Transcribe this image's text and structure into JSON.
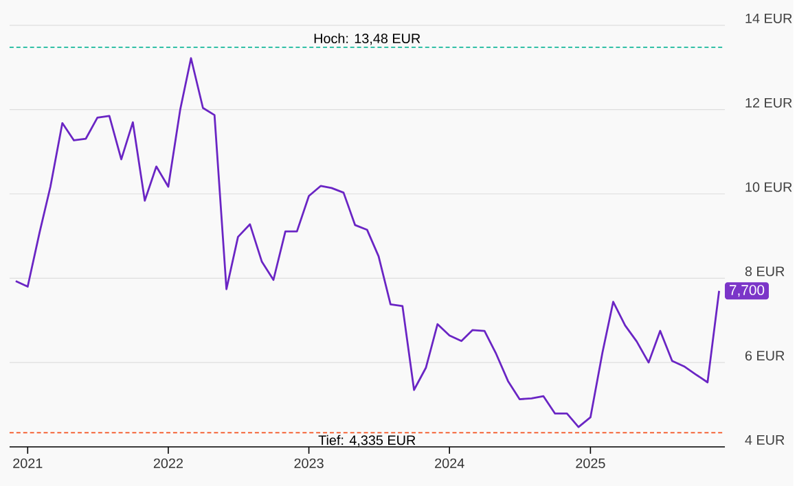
{
  "chart_data": {
    "type": "line",
    "x": [
      "2020-12",
      "2021-01",
      "2021-02",
      "2021-03",
      "2021-04",
      "2021-05",
      "2021-06",
      "2021-07",
      "2021-08",
      "2021-09",
      "2021-10",
      "2021-11",
      "2021-12",
      "2022-01",
      "2022-02",
      "2022-03",
      "2022-04",
      "2022-05",
      "2022-06",
      "2022-07",
      "2022-08",
      "2022-09",
      "2022-10",
      "2022-11",
      "2022-12",
      "2023-01",
      "2023-02",
      "2023-03",
      "2023-04",
      "2023-05",
      "2023-06",
      "2023-07",
      "2023-08",
      "2023-09",
      "2023-10",
      "2023-11",
      "2023-12",
      "2024-01",
      "2024-02",
      "2024-03",
      "2024-04",
      "2024-05",
      "2024-06",
      "2024-07",
      "2024-08",
      "2024-09",
      "2024-10",
      "2024-11",
      "2024-12",
      "2025-01",
      "2025-02",
      "2025-03",
      "2025-04",
      "2025-05",
      "2025-06",
      "2025-07",
      "2025-08",
      "2025-09",
      "2025-10",
      "2025-11",
      "2025-12"
    ],
    "series": [
      {
        "color": "#6a25c4",
        "values": [
          7.93,
          7.8,
          9.09,
          10.17,
          11.68,
          11.27,
          11.31,
          11.81,
          11.85,
          10.82,
          11.7,
          9.84,
          10.65,
          10.17,
          12.0,
          13.22,
          12.04,
          11.87,
          7.74,
          8.98,
          9.28,
          8.39,
          7.96,
          9.11,
          9.11,
          9.95,
          10.19,
          10.14,
          10.03,
          9.26,
          9.15,
          8.52,
          7.38,
          7.34,
          5.35,
          5.88,
          6.91,
          6.64,
          6.51,
          6.77,
          6.75,
          6.21,
          5.56,
          5.13,
          5.15,
          5.2,
          4.79,
          4.79,
          4.47,
          4.7,
          6.23,
          7.44,
          6.88,
          6.5,
          6.0,
          6.75,
          6.04,
          5.91,
          5.72,
          5.53,
          7.7
        ]
      }
    ],
    "xlim": [
      "2020-11-15",
      "2025-12-16"
    ],
    "xticks": [
      {
        "value": "2021-01",
        "label": "2021"
      },
      {
        "value": "2022-01",
        "label": "2022"
      },
      {
        "value": "2023-01",
        "label": "2023"
      },
      {
        "value": "2024-01",
        "label": "2024"
      },
      {
        "value": "2025-01",
        "label": "2025"
      }
    ],
    "ylim": [
      4,
      14.6
    ],
    "yticks": [
      {
        "value": 4,
        "label": "4 EUR"
      },
      {
        "value": 6,
        "label": "6 EUR"
      },
      {
        "value": 8,
        "label": "8 EUR"
      },
      {
        "value": 10,
        "label": "10 EUR"
      },
      {
        "value": 12,
        "label": "12 EUR"
      },
      {
        "value": 14,
        "label": "14 EUR"
      }
    ],
    "grid": "y",
    "ref_lines": [
      {
        "axis": "y",
        "value": 13.48,
        "label": "Hoch: 13,48 EUR",
        "color": "#14b89a",
        "line_style": "dashed"
      },
      {
        "axis": "y",
        "value": 4.335,
        "label": "Tief: 4,335 EUR",
        "color": "#f4511e",
        "line_style": "dashed"
      }
    ],
    "annotations": [
      {
        "text": "7,700",
        "x": "2025-12",
        "y": 7.7
      }
    ]
  }
}
